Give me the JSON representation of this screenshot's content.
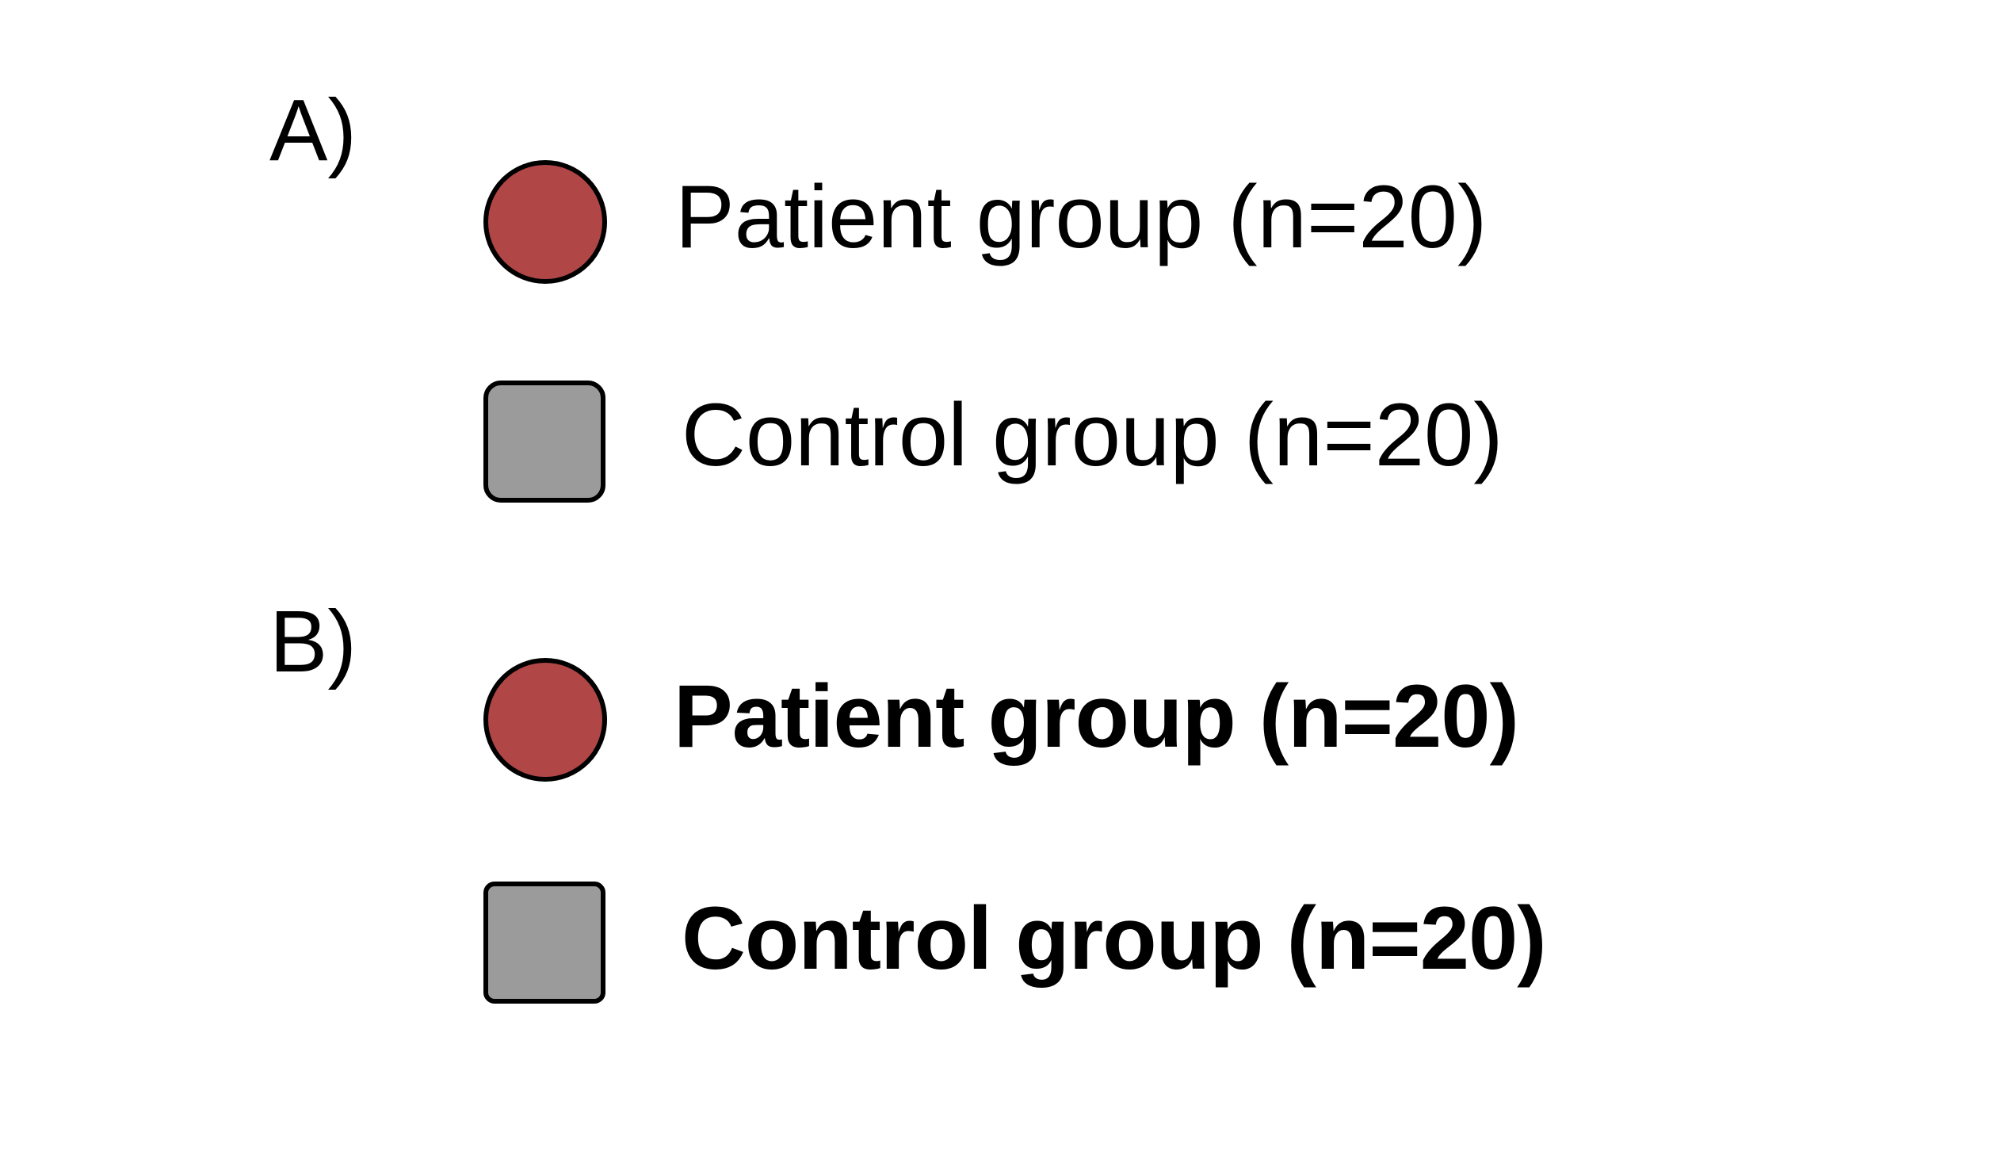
{
  "panels": {
    "a": {
      "label": "A)",
      "patient": {
        "text": "Patient group (n=20)",
        "color": "#b04646"
      },
      "control": {
        "text": "Control group (n=20)",
        "color": "#9b9b9b"
      }
    },
    "b": {
      "label": "B)",
      "patient": {
        "text": "Patient group (n=20)",
        "color": "#b04646"
      },
      "control": {
        "text": "Control group (n=20)",
        "color": "#9b9b9b"
      }
    }
  }
}
